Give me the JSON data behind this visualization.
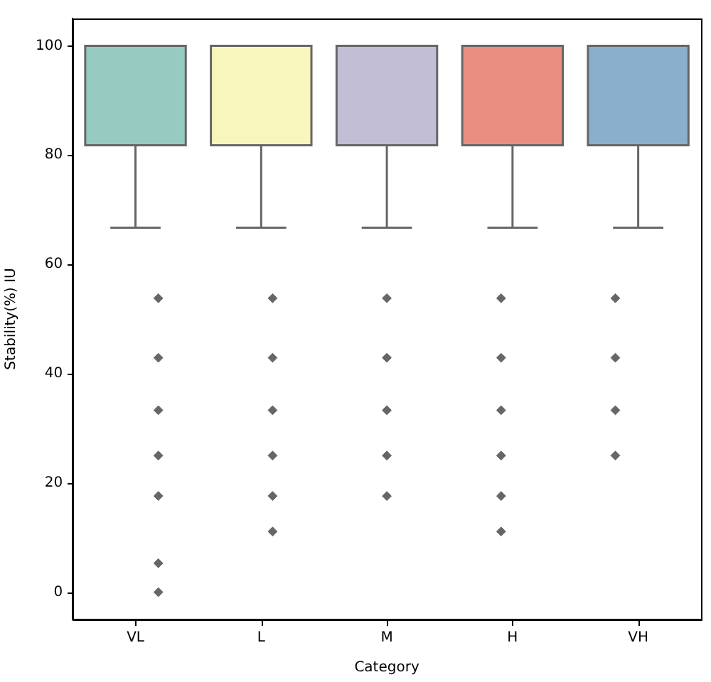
{
  "chart_data": {
    "type": "box",
    "xlabel": "Category",
    "ylabel": "Stability(%) IU",
    "categories": [
      "VL",
      "L",
      "M",
      "H",
      "VH"
    ],
    "colors": [
      "#97cac0",
      "#f6f6bd",
      "#c1bed6",
      "#ea8e82",
      "#8aafca"
    ],
    "boxes": [
      {
        "low": 66.7,
        "q1": 81.8,
        "median": 100,
        "q3": 100,
        "high": 100,
        "outliers": [
          53.8,
          42.9,
          33.3,
          25,
          17.6,
          5.3,
          0
        ]
      },
      {
        "low": 66.7,
        "q1": 81.8,
        "median": 100,
        "q3": 100,
        "high": 100,
        "outliers": [
          53.8,
          42.9,
          33.3,
          25,
          17.6,
          11.1
        ]
      },
      {
        "low": 66.7,
        "q1": 81.8,
        "median": 100,
        "q3": 100,
        "high": 100,
        "outliers": [
          53.8,
          42.9,
          33.3,
          25,
          17.6
        ]
      },
      {
        "low": 66.7,
        "q1": 81.8,
        "median": 100,
        "q3": 100,
        "high": 100,
        "outliers": [
          53.8,
          42.9,
          33.3,
          25,
          17.6,
          11.1
        ]
      },
      {
        "low": 66.7,
        "q1": 81.8,
        "median": 100,
        "q3": 100,
        "high": 100,
        "outliers": [
          53.8,
          42.9,
          33.3,
          25
        ]
      }
    ],
    "marker": "diamond",
    "ylim": [
      -5,
      105
    ],
    "yticks": [
      0,
      20,
      40,
      60,
      80,
      100
    ]
  }
}
